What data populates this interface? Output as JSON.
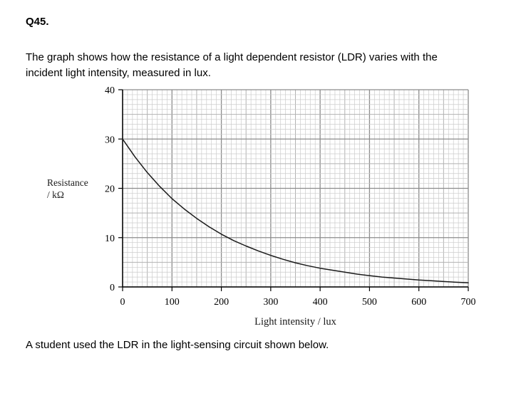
{
  "page": {
    "question_number": "Q45.",
    "intro_line1": "The graph shows how the resistance of a light dependent resistor (LDR) varies with the",
    "intro_line2": "incident light intensity, measured in lux.",
    "footer_text": "A student used the LDR in the light-sensing circuit shown below."
  },
  "chart_data": {
    "type": "line",
    "title": "",
    "xlabel": "Light intensity / lux",
    "ylabel": "Resistance / kΩ",
    "ylabel_lines": [
      "Resistance",
      "/ kΩ"
    ],
    "xlim": [
      0,
      700
    ],
    "ylim": [
      0,
      40
    ],
    "x_ticks": [
      0,
      100,
      200,
      300,
      400,
      500,
      600,
      700
    ],
    "y_ticks": [
      0,
      10,
      20,
      30,
      40
    ],
    "grid": {
      "minor_x": 10,
      "mid_x": 50,
      "major_x": 100,
      "minor_y": 1,
      "mid_y": 5,
      "major_y": 10
    },
    "legend": "none",
    "series": [
      {
        "name": "LDR resistance",
        "x": [
          0,
          25,
          50,
          75,
          100,
          125,
          150,
          175,
          200,
          225,
          250,
          275,
          300,
          325,
          350,
          375,
          400,
          425,
          450,
          475,
          500,
          525,
          550,
          575,
          600,
          625,
          650,
          675,
          700
        ],
        "y": [
          30,
          26.4,
          23.2,
          20.4,
          17.9,
          15.8,
          13.9,
          12.2,
          10.7,
          9.4,
          8.3,
          7.3,
          6.4,
          5.6,
          4.9,
          4.3,
          3.8,
          3.4,
          3.0,
          2.6,
          2.3,
          2.0,
          1.8,
          1.6,
          1.4,
          1.25,
          1.1,
          0.95,
          0.85
        ]
      }
    ],
    "colors": {
      "curve": "#1a1a1a",
      "grid_minor": "#cccccc",
      "grid_mid": "#b2b2b2",
      "grid_major": "#8c8c8c",
      "axis": "#000000"
    }
  }
}
